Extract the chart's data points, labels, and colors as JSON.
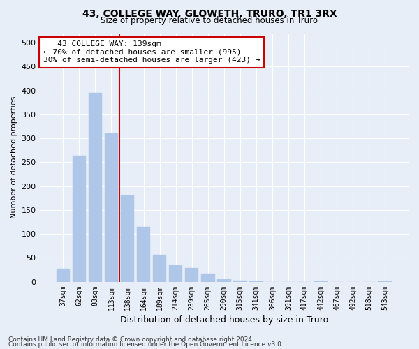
{
  "title": "43, COLLEGE WAY, GLOWETH, TRURO, TR1 3RX",
  "subtitle": "Size of property relative to detached houses in Truro",
  "xlabel": "Distribution of detached houses by size in Truro",
  "ylabel": "Number of detached properties",
  "footnote1": "Contains HM Land Registry data © Crown copyright and database right 2024.",
  "footnote2": "Contains public sector information licensed under the Open Government Licence v3.0.",
  "bar_color": "#aec6e8",
  "categories": [
    "37sqm",
    "62sqm",
    "88sqm",
    "113sqm",
    "138sqm",
    "164sqm",
    "189sqm",
    "214sqm",
    "239sqm",
    "265sqm",
    "290sqm",
    "315sqm",
    "341sqm",
    "366sqm",
    "391sqm",
    "417sqm",
    "442sqm",
    "467sqm",
    "492sqm",
    "518sqm",
    "543sqm"
  ],
  "values": [
    27,
    263,
    395,
    310,
    180,
    115,
    57,
    35,
    28,
    17,
    5,
    2,
    1,
    0,
    0,
    0,
    1,
    0,
    0,
    0,
    1
  ],
  "ylim": [
    0,
    520
  ],
  "yticks": [
    0,
    50,
    100,
    150,
    200,
    250,
    300,
    350,
    400,
    450,
    500
  ],
  "annotation_text": "   43 COLLEGE WAY: 139sqm\n← 70% of detached houses are smaller (995)\n30% of semi-detached houses are larger (423) →",
  "annotation_box_color": "#ffffff",
  "annotation_box_edge_color": "#cc0000",
  "line_color": "#cc0000",
  "bg_color": "#e8eef8",
  "fig_bg_color": "#e8eef8",
  "grid_color": "#ffffff",
  "line_x_index": 3.5
}
